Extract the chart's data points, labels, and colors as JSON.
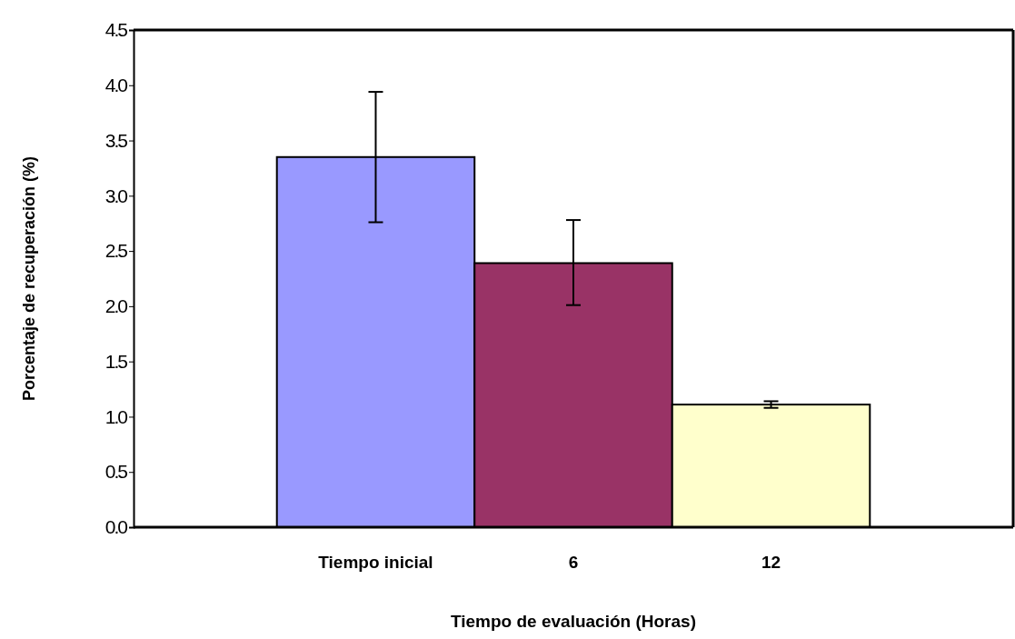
{
  "chart_data": {
    "type": "bar",
    "xlabel": "Tiempo de evaluación (Horas)",
    "ylabel": "Porcentaje de recuperación (%)",
    "categories": [
      "Tiempo inicial",
      "6",
      "12"
    ],
    "values": [
      3.35,
      2.39,
      1.11
    ],
    "colors": [
      "#9999ff",
      "#993366",
      "#ffffcc"
    ],
    "errors": [
      [
        2.76,
        3.94
      ],
      [
        2.01,
        2.78
      ],
      [
        1.08,
        1.14
      ]
    ],
    "ylim": [
      0,
      4.5
    ],
    "yticks": [
      {
        "value": 0,
        "label": "0.0"
      },
      {
        "value": 0.5,
        "label": "0.5"
      },
      {
        "value": 1,
        "label": "1.0"
      },
      {
        "value": 1.5,
        "label": "1.5"
      },
      {
        "value": 2,
        "label": "2.0"
      },
      {
        "value": 2.5,
        "label": "2.5"
      },
      {
        "value": 3,
        "label": "3.0"
      },
      {
        "value": 3.5,
        "label": "3.5"
      },
      {
        "value": 4,
        "label": "4.0"
      },
      {
        "value": 4.5,
        "label": "4.5"
      }
    ],
    "grid": false
  }
}
